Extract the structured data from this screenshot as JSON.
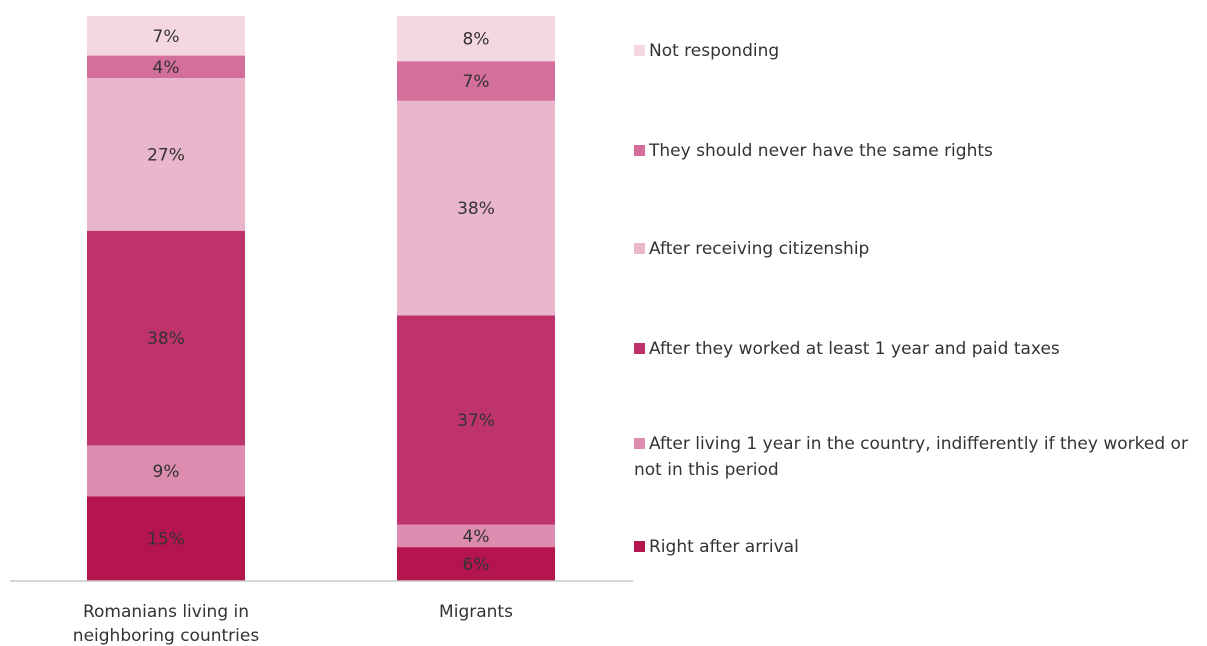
{
  "chart_data": {
    "type": "bar",
    "stacked": true,
    "percent": true,
    "categories": [
      "Romanians living in neighboring countries",
      "Migrants"
    ],
    "series": [
      {
        "name": "Right after arrival",
        "color": "#b5154f",
        "values": [
          15,
          6
        ]
      },
      {
        "name": "After living 1 year in the country, indifferently if they worked or not in this period",
        "color": "#dc8daf",
        "values": [
          9,
          4
        ]
      },
      {
        "name": "After they worked at least 1 year and paid taxes",
        "color": "#be336b",
        "values": [
          38,
          37
        ]
      },
      {
        "name": "After receiving citizenship",
        "color": "#e9b6cb",
        "values": [
          27,
          38
        ]
      },
      {
        "name": "They should never have the same rights",
        "color": "#d46e9a",
        "values": [
          4,
          7
        ]
      },
      {
        "name": "Not responding",
        "color": "#f4d7e2",
        "values": [
          7,
          8
        ]
      }
    ],
    "data_labels": [
      [
        "15%",
        "9%",
        "38%",
        "27%",
        "4%",
        "7%"
      ],
      [
        "6%",
        "4%",
        "37%",
        "38%",
        "7%",
        "8%"
      ]
    ],
    "legend_position": "right",
    "grid": false,
    "ylim": [
      0,
      100
    ]
  }
}
